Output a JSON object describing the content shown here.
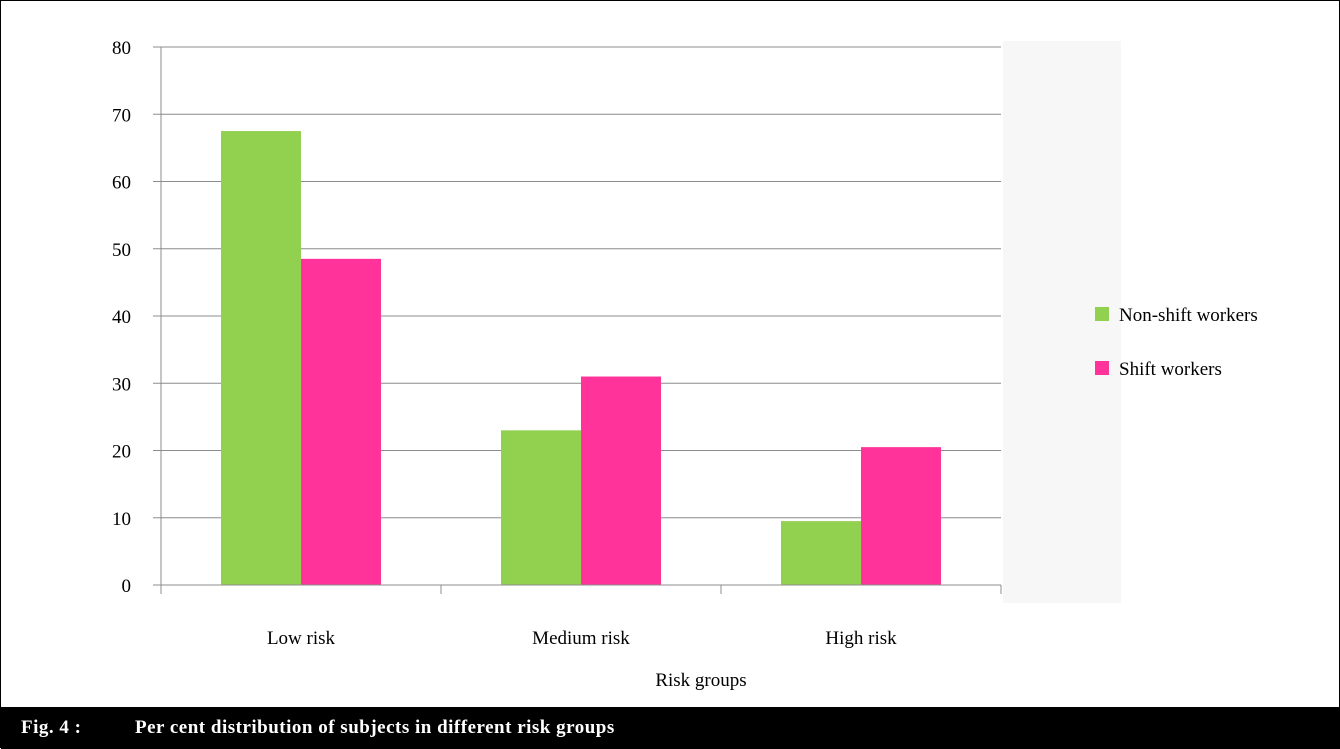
{
  "chart_data": {
    "type": "bar",
    "categories": [
      "Low risk",
      "Medium risk",
      "High risk"
    ],
    "series": [
      {
        "name": "Non-shift workers",
        "values": [
          67.5,
          23,
          9.5
        ],
        "color": "#92d050"
      },
      {
        "name": "Shift workers",
        "values": [
          48.5,
          31,
          20.5
        ],
        "color": "#ff3399"
      }
    ],
    "xlabel": "Risk groups",
    "ylabel": "",
    "ylim": [
      0,
      80
    ],
    "yticks": [
      0,
      10,
      20,
      30,
      40,
      50,
      60,
      70,
      80
    ],
    "grid": true,
    "legend": "right"
  },
  "caption": {
    "label": "Fig. 4 :",
    "text": "Per cent distribution of subjects in different risk groups"
  }
}
